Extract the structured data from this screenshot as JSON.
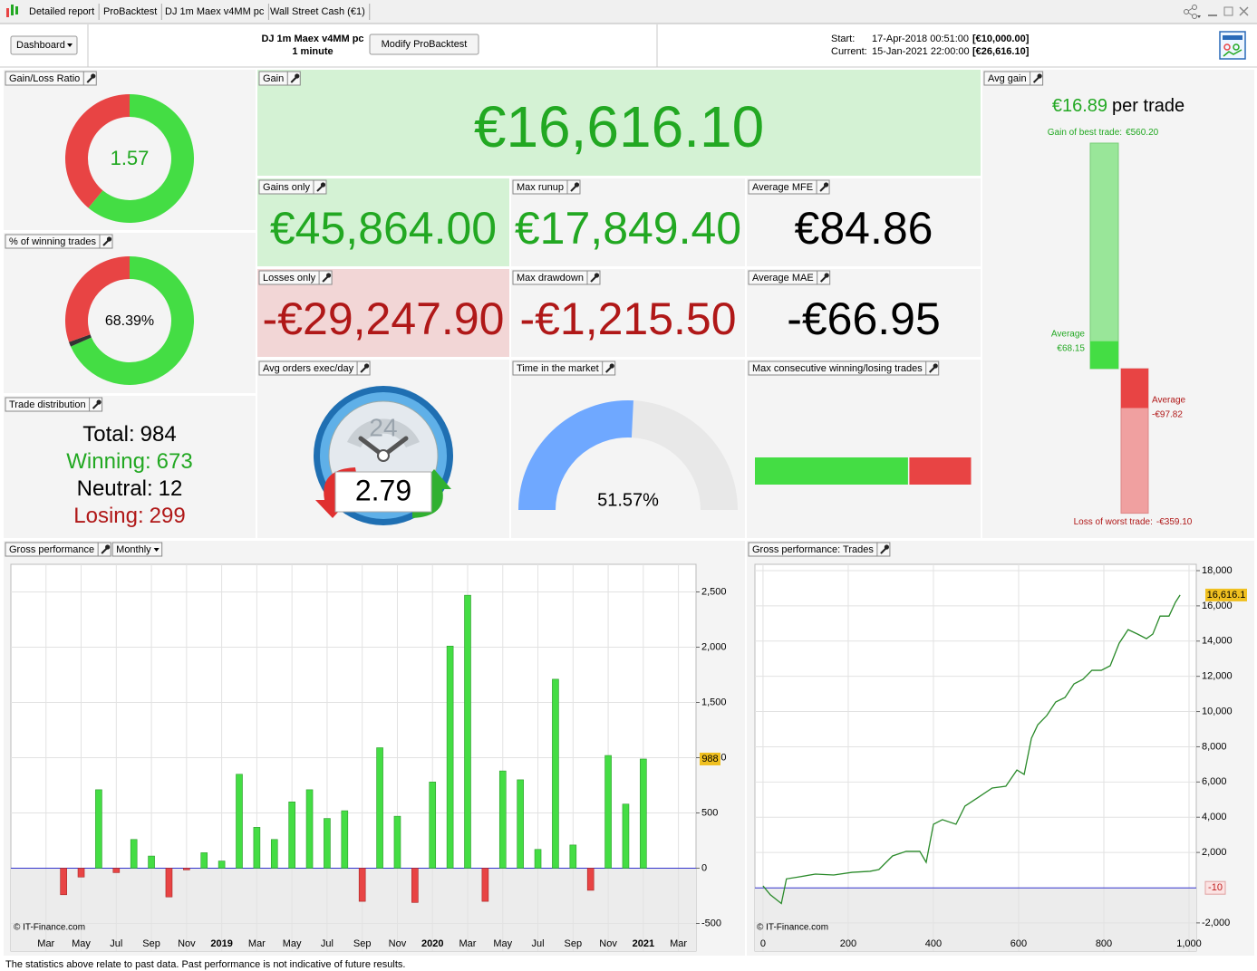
{
  "tabs": [
    "Detailed report",
    "ProBacktest",
    "DJ 1m Maex v4MM pc",
    "Wall Street Cash (€1)"
  ],
  "toolbar": {
    "dashboard": "Dashboard",
    "system_name": "DJ 1m Maex v4MM pc",
    "timeframe": "1 minute",
    "modify_button": "Modify ProBacktest",
    "start_label": "Start:",
    "start_date": "17-Apr-2018 00:51:00",
    "start_capital": "[€10,000.00]",
    "current_label": "Current:",
    "current_date": "15-Jan-2021 22:00:00",
    "current_capital": "[€26,616.10]"
  },
  "gain_loss_ratio": {
    "title": "Gain/Loss Ratio",
    "value": 1.57,
    "colors": [
      "#44dd44",
      "#e84444"
    ]
  },
  "winning_trades_pct": {
    "title": "% of winning trades",
    "value": 68.39,
    "label": "68.39%"
  },
  "trade_distribution": {
    "title": "Trade distribution",
    "rows": [
      {
        "label": "Total:",
        "value": 984,
        "color": "#000000"
      },
      {
        "label": "Winning:",
        "value": 673,
        "color": "#22a822"
      },
      {
        "label": "Neutral:",
        "value": 12,
        "color": "#000000"
      },
      {
        "label": "Losing:",
        "value": 299,
        "color": "#b01818"
      }
    ],
    "segment_colors": [
      "#44dd44",
      "#333333",
      "#e84444"
    ]
  },
  "gain": {
    "title": "Gain",
    "value": "€16,616.10"
  },
  "gains_only": {
    "title": "Gains only",
    "value": "€45,864.00"
  },
  "max_runup": {
    "title": "Max runup",
    "value": "€17,849.40"
  },
  "average_mfe": {
    "title": "Average MFE",
    "value": "€84.86"
  },
  "losses_only": {
    "title": "Losses only",
    "value": "-€29,247.90"
  },
  "max_drawdown": {
    "title": "Max drawdown",
    "value": "-€1,215.50"
  },
  "average_mae": {
    "title": "Average MAE",
    "value": "-€66.95"
  },
  "avg_orders": {
    "title": "Avg orders exec/day",
    "value": 2.79,
    "clock_label": 24
  },
  "time_in_market": {
    "title": "Time in the market",
    "value": 51.57,
    "label": "51.57%",
    "color": "#6fa8ff"
  },
  "max_consecutive": {
    "title": "Max consecutive winning/losing trades",
    "segments": [
      {
        "color": "#44dd44",
        "value": 71
      },
      {
        "color": "#e84444",
        "value": 29
      }
    ]
  },
  "avg_gain": {
    "title": "Avg gain",
    "value": 16.89,
    "value_label": "€16.89",
    "unit": "per trade",
    "best": {
      "label": "Gain of best trade:",
      "value": 560.2,
      "value_label": "€560.20"
    },
    "avg_win": {
      "label": "Average",
      "value": 68.15,
      "value_label": "€68.15"
    },
    "avg_loss": {
      "label": "Average",
      "value": -97.82,
      "value_label": "-€97.82"
    },
    "worst": {
      "label": "Loss of worst trade:",
      "value": -359.1,
      "value_label": "-€359.10"
    }
  },
  "chart_data": [
    {
      "type": "bar",
      "title": "Gross performance",
      "period": "Monthly",
      "categories": [
        "Mar",
        null,
        "May",
        null,
        "Jul",
        null,
        "Sep",
        null,
        "Nov",
        null,
        "2019",
        null,
        "Mar",
        null,
        "May",
        null,
        "Jul",
        null,
        "Sep",
        null,
        "Nov",
        null,
        "2020",
        null,
        "Mar",
        null,
        "May",
        null,
        "Jul",
        null,
        "Sep",
        null,
        "Nov",
        null,
        "2021",
        null,
        "Mar"
      ],
      "values": [
        null,
        -240,
        -80,
        710,
        -40,
        260,
        110,
        -260,
        -15,
        140,
        65,
        850,
        370,
        260,
        600,
        710,
        450,
        520,
        -300,
        1090,
        470,
        -310,
        780,
        2010,
        2470,
        -300,
        880,
        800,
        170,
        1710,
        210,
        -200,
        1020,
        580,
        988,
        null,
        null
      ],
      "color_positive": "#44dd44",
      "color_negative": "#e84444",
      "ylim": [
        -750,
        2750
      ],
      "yticks": [
        -500,
        0,
        500,
        {
          "value": 1000,
          "label": "1,000"
        },
        {
          "value": 1500,
          "label": "1,500"
        },
        {
          "value": 2000,
          "label": "2,000"
        },
        {
          "value": 2500,
          "label": "2,500"
        }
      ],
      "reference_line": {
        "value": 0,
        "color": "#3333cc"
      },
      "grid": true,
      "watermark": "© IT-Finance.com"
    },
    {
      "type": "line",
      "title": "Gross performance: Trades",
      "x": [
        0,
        17,
        43,
        55,
        81,
        123,
        166,
        209,
        251,
        272,
        304,
        336,
        368,
        383,
        400,
        421,
        453,
        474,
        506,
        538,
        570,
        596,
        613,
        630,
        645,
        666,
        687,
        709,
        730,
        751,
        772,
        794,
        815,
        836,
        857,
        879,
        900,
        915,
        932,
        953,
        968,
        979
      ],
      "series": [
        {
          "color": "#2a8a2a",
          "values": [
            100,
            -400,
            -900,
            500,
            600,
            770,
            720,
            870,
            930,
            1030,
            1800,
            2060,
            2060,
            1440,
            3600,
            3860,
            3600,
            4630,
            5140,
            5660,
            5760,
            6680,
            6430,
            8480,
            9250,
            9770,
            10540,
            10800,
            11570,
            11830,
            12340,
            12340,
            12600,
            13880,
            14650,
            14400,
            14140,
            14400,
            15420,
            15420,
            16200,
            16616.1
          ],
          "value_labels": [
            null,
            null,
            null,
            null,
            null,
            null,
            null,
            null,
            null,
            null,
            null,
            null,
            null,
            null,
            null,
            null,
            null,
            null,
            null,
            null,
            null,
            null,
            null,
            null,
            null,
            null,
            null,
            null,
            null,
            null,
            null,
            null,
            null,
            null,
            null,
            null,
            null,
            null,
            null,
            null,
            null,
            "16,616.1"
          ]
        }
      ],
      "xlim": [
        -19,
        1017
      ],
      "xticks": [
        0,
        200,
        400,
        600,
        800,
        {
          "value": 1000,
          "label": "1,000"
        }
      ],
      "ylim": [
        -3600,
        18360
      ],
      "yticks": [
        {
          "value": -2000,
          "label": "-2,000"
        },
        {
          "value": 2000,
          "label": "2,000"
        },
        {
          "value": 4000,
          "label": "4,000"
        },
        {
          "value": 6000,
          "label": "6,000"
        },
        {
          "value": 8000,
          "label": "8,000"
        },
        {
          "value": 10000,
          "label": "10,000"
        },
        {
          "value": 12000,
          "label": "12,000"
        },
        {
          "value": 14000,
          "label": "14,000"
        },
        {
          "value": 16000,
          "label": "16,000"
        },
        {
          "value": 18000,
          "label": "18,000"
        }
      ],
      "reference_line": {
        "value": -10,
        "color": "#3333cc"
      },
      "grid": true,
      "watermark": "© IT-Finance.com"
    }
  ],
  "footer": "The statistics above relate to past data. Past performance is not indicative of future results."
}
